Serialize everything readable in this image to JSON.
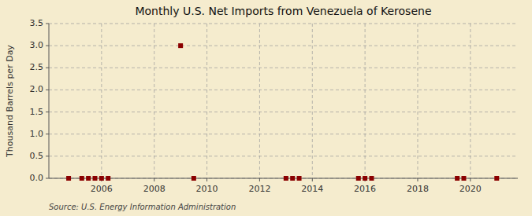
{
  "chart_data": {
    "type": "scatter",
    "title": "Monthly U.S. Net Imports from Venezuela of Kerosene",
    "y_label": "Thousand Barrels per Day",
    "source": "Source: U.S. Energy Information Administration",
    "x": [
      2004.75,
      2005.25,
      2005.5,
      2005.75,
      2006.0,
      2006.25,
      2009.0,
      2009.5,
      2013.0,
      2013.25,
      2013.5,
      2015.75,
      2016.0,
      2016.25,
      2019.5,
      2019.75,
      2021.0
    ],
    "values": [
      0.0,
      0.0,
      0.0,
      0.0,
      0.0,
      0.0,
      3.0,
      0.0,
      0.0,
      0.0,
      0.0,
      0.0,
      0.0,
      0.0,
      0.0,
      0.0,
      0.0
    ],
    "color": "#8b0000",
    "marker": "square",
    "xlim": [
      2004.0,
      2021.8
    ],
    "xticks": [
      2006,
      2008,
      2010,
      2012,
      2014,
      2016,
      2018,
      2020
    ],
    "ylim": [
      0.0,
      3.5
    ],
    "yticks": [
      {
        "value": 0.0,
        "label": "0.0"
      },
      0.5,
      {
        "value": 1.0,
        "label": "1.0"
      },
      1.5,
      {
        "value": 2.0,
        "label": "2.0"
      },
      2.5,
      {
        "value": 3.0,
        "label": "3.0"
      },
      3.5
    ],
    "grid": true
  }
}
